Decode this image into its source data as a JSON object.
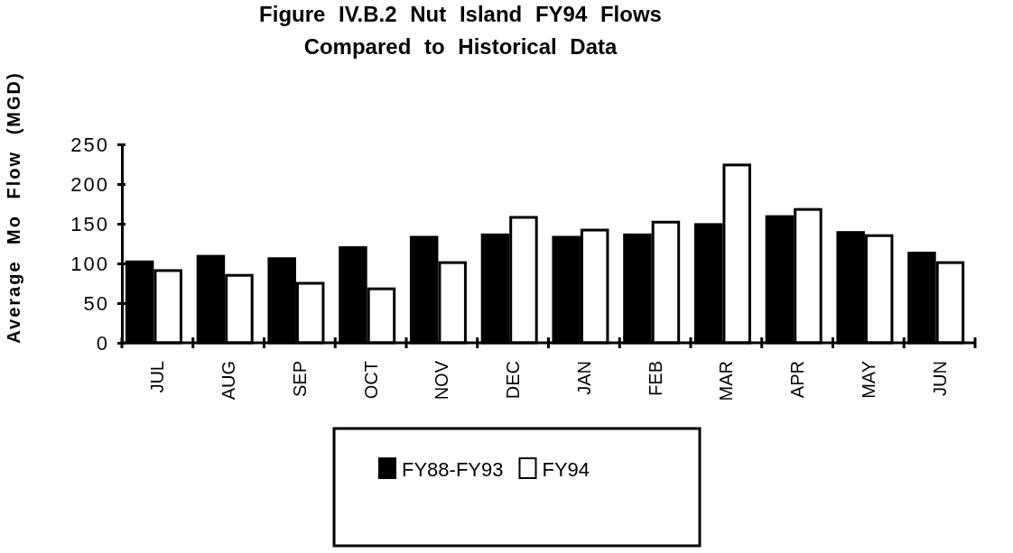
{
  "chart_data": {
    "type": "bar",
    "title": "Figure IV.B.2  Nut Island FY94 Flows",
    "subtitle": "Compared to Historical Data",
    "ylabel": "Average Mo Flow (MGD)",
    "categories": [
      "JUL",
      "AUG",
      "SEP",
      "OCT",
      "NOV",
      "DEC",
      "JAN",
      "FEB",
      "MAR",
      "APR",
      "MAY",
      "JUN"
    ],
    "series": [
      {
        "name": "FY88-FY93",
        "color": "#000000",
        "values": [
          102,
          109,
          106,
          120,
          133,
          136,
          133,
          136,
          149,
          159,
          139,
          113
        ]
      },
      {
        "name": "FY94",
        "color": "#ffffff",
        "values": [
          91,
          85,
          75,
          68,
          101,
          158,
          142,
          152,
          224,
          168,
          135,
          101
        ]
      }
    ],
    "ylim": [
      0,
      250
    ],
    "yticks": [
      0,
      50,
      100,
      150,
      200,
      250
    ],
    "grid": false,
    "legend": "bottom"
  }
}
